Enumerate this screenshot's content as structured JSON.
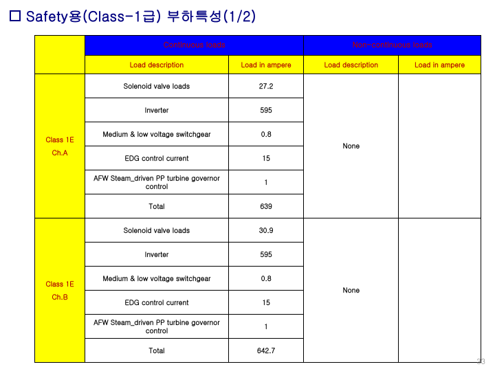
{
  "title": "Safety용(Class-1급) 부하특성(1/2)",
  "headers": {
    "continuous": "Continuous loads",
    "noncontinuous": "Non-continuous loads",
    "load_desc": "Load description",
    "load_amp": "Load in ampere"
  },
  "groups": [
    {
      "label_lines": [
        "Class 1E",
        "Ch.A"
      ],
      "rows": [
        {
          "desc": "Solenoid valve loads",
          "val": "27.2"
        },
        {
          "desc": "Inverter",
          "val": "595"
        },
        {
          "desc": "Medium & low voltage switchgear",
          "val": "0.8"
        },
        {
          "desc": "EDG control current",
          "val": "15"
        },
        {
          "desc": "AFW Steam_driven PP turbine governor\ncontrol",
          "val": "1"
        },
        {
          "desc": "Total",
          "val": "639"
        }
      ],
      "none": "None"
    },
    {
      "label_lines": [
        "Class 1E",
        "Ch.B"
      ],
      "rows": [
        {
          "desc": "Solenoid valve loads",
          "val": "30.9"
        },
        {
          "desc": "Inverter",
          "val": "595"
        },
        {
          "desc": "Medium & low voltage switchgear",
          "val": "0.8"
        },
        {
          "desc": "EDG control current",
          "val": "15"
        },
        {
          "desc": "AFW Steam_driven PP turbine governor\ncontrol",
          "val": "1"
        },
        {
          "desc": "Total",
          "val": "642.7"
        }
      ],
      "none": "None"
    }
  ],
  "page_number": "33"
}
